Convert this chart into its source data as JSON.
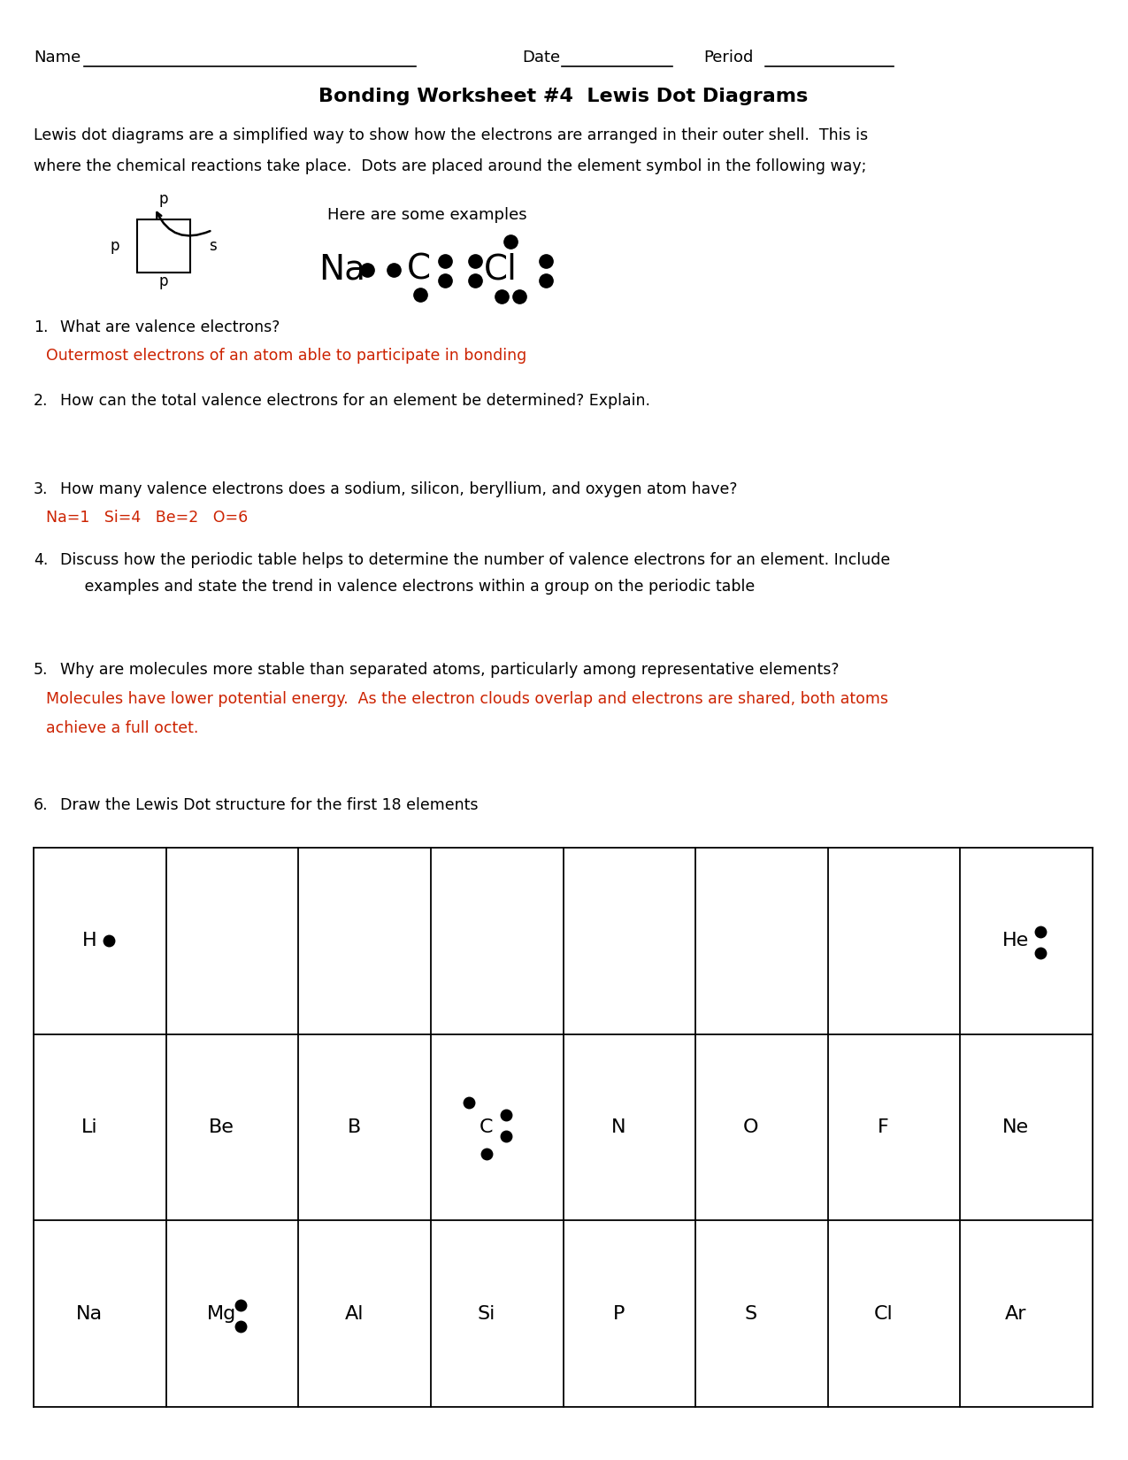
{
  "bg": "#ffffff",
  "title": "Bonding Worksheet #4  Lewis Dot Diagrams",
  "intro1": "Lewis dot diagrams are a simplified way to show how the electrons are arranged in their outer shell.  This is",
  "intro2": "where the chemical reactions take place.  Dots are placed around the element symbol in the following way;",
  "examples_text": "Here are some examples",
  "q1_q": "What are valence electrons?",
  "q1_a": "Outermost electrons of an atom able to participate in bonding",
  "q2_q": "How can the total valence electrons for an element be determined? Explain.",
  "q3_q": "How many valence electrons does a sodium, silicon, beryllium, and oxygen atom have?",
  "q3_a": "Na=1   Si=4   Be=2   O=6",
  "q4_q1": "Discuss how the periodic table helps to determine the number of valence electrons for an element. Include",
  "q4_q2": "     examples and state the trend in valence electrons within a group on the periodic table",
  "q5_q": "Why are molecules more stable than separated atoms, particularly among representative elements?",
  "q5_a1": "Molecules have lower potential energy.  As the electron clouds overlap and electrons are shared, both atoms",
  "q5_a2": "achieve a full octet.",
  "q6_q": "Draw the Lewis Dot structure for the first 18 elements",
  "red": "#cc2200",
  "black": "#000000"
}
